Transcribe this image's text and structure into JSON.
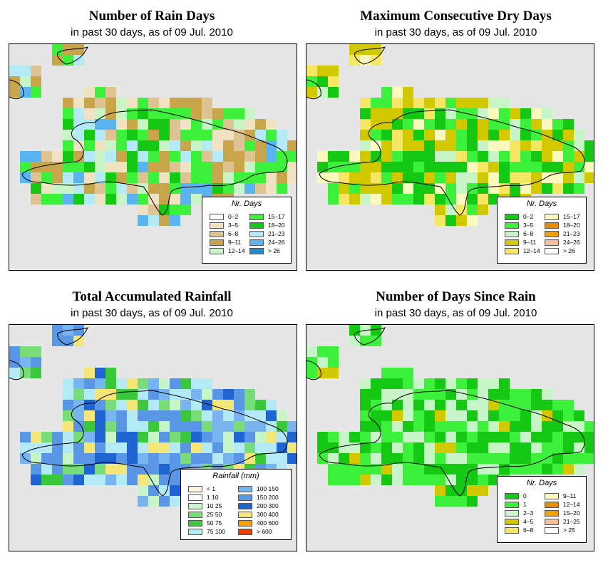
{
  "panels": [
    {
      "id": "rain-days",
      "title": "Number of Rain Days",
      "subtitle": "in past 30 days, as of  09 Jul. 2010",
      "legend": {
        "title": "Nr. Days",
        "items": [
          {
            "label": "0–2",
            "color": "#ffffff"
          },
          {
            "label": "3–5",
            "color": "#f2e2c4"
          },
          {
            "label": "6–8",
            "color": "#dfc493"
          },
          {
            "label": "9–11",
            "color": "#c8a54a"
          },
          {
            "label": "12–14",
            "color": "#c8f5c8"
          },
          {
            "label": "15–17",
            "color": "#3cf03c"
          },
          {
            "label": "18–20",
            "color": "#14c814"
          },
          {
            "label": "21–23",
            "color": "#b4eaf5"
          },
          {
            "label": "24–26",
            "color": "#5ab4f0"
          },
          {
            "label": "> 26",
            "color": "#1e8ccd"
          }
        ]
      }
    },
    {
      "id": "dry-days",
      "title": "Maximum Consecutive Dry Days",
      "subtitle": "in past 30 days, as of  09 Jul. 2010",
      "legend": {
        "title": "Nr. Days",
        "items": [
          {
            "label": "0–2",
            "color": "#14c814"
          },
          {
            "label": "3–5",
            "color": "#3cf03c"
          },
          {
            "label": "6–8",
            "color": "#c8f5c8"
          },
          {
            "label": "9–11",
            "color": "#d2c800"
          },
          {
            "label": "12–14",
            "color": "#f5e664"
          },
          {
            "label": "15–17",
            "color": "#fafabe"
          },
          {
            "label": "18–20",
            "color": "#e68c00"
          },
          {
            "label": "21–23",
            "color": "#f5a000"
          },
          {
            "label": "24–26",
            "color": "#f5be96"
          },
          {
            "label": "> 26",
            "color": "#ffffff"
          }
        ]
      }
    },
    {
      "id": "rainfall",
      "title": "Total Accumulated Rainfall",
      "subtitle": "in past 30 days, as of  09 Jul. 2010",
      "legend": {
        "title": "Rainfall (mm)",
        "items": [
          {
            "label": "< 1",
            "color": "#fdf5e0"
          },
          {
            "label": "1    10",
            "color": "#ffffff"
          },
          {
            "label": "10    25",
            "color": "#c8f5c8"
          },
          {
            "label": "25    50",
            "color": "#78dc78"
          },
          {
            "label": "50    75",
            "color": "#3cc83c"
          },
          {
            "label": "75    100",
            "color": "#b4eaf5"
          },
          {
            "label": "100    150",
            "color": "#78b4f0"
          },
          {
            "label": "150    200",
            "color": "#5a96e6"
          },
          {
            "label": "200    300",
            "color": "#1e64d2"
          },
          {
            "label": "300    400",
            "color": "#f5e678"
          },
          {
            "label": "400    600",
            "color": "#f5a000"
          },
          {
            "label": "> 600",
            "color": "#f03c00"
          }
        ]
      }
    },
    {
      "id": "since-rain",
      "title": "Number of Days Since Rain",
      "subtitle": "in past 30 days, as of  09 Jul. 2010",
      "legend": {
        "title": "Nr. Days",
        "items": [
          {
            "label": "0",
            "color": "#14c814"
          },
          {
            "label": "1",
            "color": "#3cf03c"
          },
          {
            "label": "2–3",
            "color": "#c8f5c8"
          },
          {
            "label": "4–5",
            "color": "#d2c800"
          },
          {
            "label": "6–8",
            "color": "#f5e664"
          },
          {
            "label": "9–11",
            "color": "#fafabe"
          },
          {
            "label": "12–14",
            "color": "#e68c00"
          },
          {
            "label": "15–20",
            "color": "#f5a000"
          },
          {
            "label": "21–25",
            "color": "#f5be96"
          },
          {
            "label": "> 25",
            "color": "#ffffff"
          }
        ]
      }
    }
  ]
}
